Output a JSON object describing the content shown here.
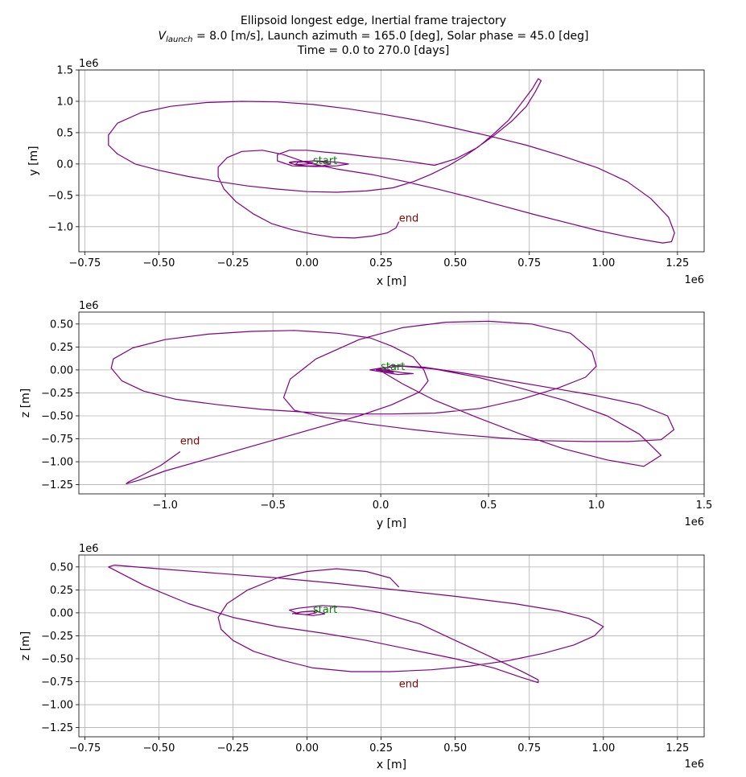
{
  "figure": {
    "title_line1": "Ellipsoid longest edge, Inertial frame trajectory",
    "title_line2_symbol": "V",
    "title_line2_subscript": "launch",
    "title_line2_rest": " = 8.0 [m/s], Launch azimuth = 165.0 [deg], Solar phase = 45.0 [deg]",
    "title_line3": "Time = 0.0 to 270.0 [days]"
  },
  "chart_data": [
    {
      "type": "line",
      "xlabel": "x [m]",
      "ylabel": "y [m]",
      "x_offset_label": "1e6",
      "y_offset_label": "1e6",
      "xlim": [
        -0.77,
        1.34
      ],
      "ylim": [
        -1.4,
        1.5
      ],
      "xticks": [
        -0.75,
        -0.5,
        -0.25,
        0.0,
        0.25,
        0.5,
        0.75,
        1.0,
        1.25
      ],
      "xtick_labels": [
        "−0.75",
        "−0.50",
        "−0.25",
        "0.00",
        "0.25",
        "0.50",
        "0.75",
        "1.00",
        "1.25"
      ],
      "yticks": [
        -1.0,
        -0.5,
        0.0,
        0.5,
        1.0,
        1.5
      ],
      "ytick_labels": [
        "−1.0",
        "−0.5",
        "0.0",
        "0.5",
        "1.0",
        "1.5"
      ],
      "grid": true,
      "line_color": "#800080",
      "annotations": [
        {
          "text": "start",
          "x": 0.02,
          "y": 0.0,
          "color": "#008000"
        },
        {
          "text": "end",
          "x": 0.31,
          "y": -0.92,
          "color": "#8b0000"
        }
      ],
      "series": [
        {
          "x": [
            -0.06,
            -0.04,
            -0.01,
            0.02,
            0.0,
            -0.04,
            -0.03,
            0.02,
            0.06,
            0.08,
            0.05,
            0.0,
            -0.04,
            -0.06,
            -0.03,
            0.03,
            0.1,
            0.14,
            0.1,
            0.03,
            -0.05,
            -0.1,
            -0.1,
            -0.06,
            0.0,
            0.06,
            0.13,
            0.2,
            0.28,
            0.36,
            0.43,
            0.5,
            0.57,
            0.63,
            0.69,
            0.74,
            0.77,
            0.79,
            0.78,
            0.76,
            0.72,
            0.68,
            0.63,
            0.58,
            0.53,
            0.48,
            0.42,
            0.36,
            0.29,
            0.2,
            0.1,
            -0.0,
            -0.1,
            -0.2,
            -0.3,
            -0.4,
            -0.5,
            -0.58,
            -0.64,
            -0.67,
            -0.67,
            -0.64,
            -0.56,
            -0.46,
            -0.34,
            -0.22,
            -0.1,
            0.02,
            0.14,
            0.26,
            0.38,
            0.5,
            0.62,
            0.74,
            0.86,
            0.98,
            1.08,
            1.16,
            1.22,
            1.24,
            1.23,
            1.2,
            1.15,
            1.08,
            0.98,
            0.88,
            0.77,
            0.66,
            0.55,
            0.44,
            0.33,
            0.22,
            0.1,
            0.0,
            -0.08,
            -0.15,
            -0.22,
            -0.27,
            -0.3,
            -0.3,
            -0.28,
            -0.24,
            -0.18,
            -0.12,
            -0.05,
            0.02,
            0.09,
            0.16,
            0.22,
            0.27,
            0.3,
            0.31
          ],
          "y": [
            0.03,
            0.04,
            0.04,
            0.02,
            0.0,
            -0.01,
            0.03,
            0.05,
            0.03,
            0.0,
            -0.03,
            -0.03,
            -0.01,
            0.02,
            0.04,
            0.05,
            0.03,
            0.0,
            -0.03,
            -0.04,
            -0.03,
            0.05,
            0.15,
            0.22,
            0.22,
            0.19,
            0.16,
            0.12,
            0.08,
            0.03,
            -0.02,
            0.08,
            0.25,
            0.45,
            0.68,
            0.92,
            1.15,
            1.33,
            1.36,
            1.2,
            0.95,
            0.7,
            0.48,
            0.28,
            0.12,
            -0.02,
            -0.16,
            -0.28,
            -0.38,
            -0.43,
            -0.45,
            -0.44,
            -0.4,
            -0.35,
            -0.28,
            -0.2,
            -0.1,
            0.0,
            0.16,
            0.3,
            0.46,
            0.65,
            0.82,
            0.92,
            0.98,
            1.0,
            0.99,
            0.95,
            0.88,
            0.79,
            0.69,
            0.57,
            0.44,
            0.3,
            0.13,
            -0.06,
            -0.28,
            -0.55,
            -0.85,
            -1.1,
            -1.24,
            -1.26,
            -1.22,
            -1.16,
            -1.06,
            -0.94,
            -0.81,
            -0.67,
            -0.53,
            -0.4,
            -0.28,
            -0.17,
            -0.08,
            0.02,
            0.15,
            0.22,
            0.2,
            0.1,
            -0.05,
            -0.2,
            -0.4,
            -0.6,
            -0.8,
            -0.95,
            -1.05,
            -1.12,
            -1.17,
            -1.18,
            -1.15,
            -1.1,
            -1.02,
            -0.92
          ]
        }
      ]
    },
    {
      "type": "line",
      "xlabel": "y [m]",
      "ylabel": "z [m]",
      "x_offset_label": "1e6",
      "y_offset_label": "1e6",
      "xlim": [
        -1.4,
        1.5
      ],
      "ylim": [
        -1.35,
        0.63
      ],
      "xticks": [
        -1.0,
        -0.5,
        0.0,
        0.5,
        1.0,
        1.5
      ],
      "xtick_labels": [
        "−1.0",
        "−0.5",
        "0.0",
        "0.5",
        "1.0",
        "1.5"
      ],
      "yticks": [
        -1.25,
        -1.0,
        -0.75,
        -0.5,
        -0.25,
        0.0,
        0.25,
        0.5
      ],
      "ytick_labels": [
        "−1.25",
        "−1.00",
        "−0.75",
        "−0.50",
        "−0.25",
        "0.00",
        "0.25",
        "0.50"
      ],
      "grid": true,
      "line_color": "#800080",
      "annotations": [
        {
          "text": "start",
          "x": 0.0,
          "y": 0.0,
          "color": "#008000"
        },
        {
          "text": "end",
          "x": -0.93,
          "y": -0.81,
          "color": "#8b0000"
        }
      ],
      "series": [
        {
          "x": [
            0.05,
            0.02,
            -0.01,
            0.02,
            0.06,
            0.03,
            -0.02,
            0.0,
            0.05,
            0.1,
            0.15,
            0.08,
            0.0,
            -0.05,
            0.0,
            0.1,
            0.25,
            0.45,
            0.65,
            0.85,
            1.05,
            1.2,
            1.3,
            1.22,
            1.05,
            0.85,
            0.65,
            0.45,
            0.25,
            0.1,
            0.0,
            0.05,
            0.2,
            0.4,
            0.6,
            0.8,
            1.0,
            1.2,
            1.33,
            1.36,
            1.3,
            1.15,
            0.95,
            0.75,
            0.55,
            0.35,
            0.15,
            -0.05,
            -0.25,
            -0.4,
            -0.45,
            -0.42,
            -0.3,
            -0.1,
            0.1,
            0.3,
            0.5,
            0.7,
            0.88,
            0.98,
            1.0,
            0.95,
            0.82,
            0.65,
            0.46,
            0.25,
            0.05,
            -0.15,
            -0.35,
            -0.55,
            -0.75,
            -0.95,
            -1.1,
            -1.2,
            -1.25,
            -1.24,
            -1.15,
            -1.0,
            -0.8,
            -0.6,
            -0.4,
            -0.2,
            -0.05,
            0.05,
            0.15,
            0.2,
            0.22,
            0.18,
            0.05,
            -0.1,
            -0.25,
            -0.4,
            -0.55,
            -0.7,
            -0.85,
            -1.0,
            -1.12,
            -1.18,
            -1.17,
            -1.1,
            -1.02,
            -0.93
          ],
          "y": [
            -0.02,
            -0.01,
            0.0,
            0.01,
            -0.03,
            -0.02,
            0.0,
            0.01,
            -0.01,
            -0.03,
            -0.04,
            -0.05,
            -0.02,
            0.0,
            0.02,
            0.04,
            0.01,
            -0.08,
            -0.2,
            -0.33,
            -0.5,
            -0.7,
            -0.93,
            -1.05,
            -0.98,
            -0.86,
            -0.7,
            -0.52,
            -0.33,
            -0.15,
            -0.01,
            0.05,
            0.03,
            -0.04,
            -0.12,
            -0.2,
            -0.28,
            -0.38,
            -0.5,
            -0.65,
            -0.76,
            -0.78,
            -0.78,
            -0.77,
            -0.74,
            -0.7,
            -0.65,
            -0.59,
            -0.52,
            -0.44,
            -0.3,
            -0.1,
            0.12,
            0.33,
            0.46,
            0.52,
            0.53,
            0.5,
            0.4,
            0.2,
            0.04,
            -0.08,
            -0.2,
            -0.32,
            -0.42,
            -0.47,
            -0.48,
            -0.48,
            -0.46,
            -0.43,
            -0.38,
            -0.32,
            -0.23,
            -0.12,
            0.02,
            0.12,
            0.24,
            0.33,
            0.39,
            0.42,
            0.43,
            0.4,
            0.35,
            0.26,
            0.14,
            0.0,
            -0.12,
            -0.24,
            -0.38,
            -0.5,
            -0.6,
            -0.7,
            -0.8,
            -0.9,
            -1.0,
            -1.1,
            -1.2,
            -1.24,
            -1.22,
            -1.14,
            -1.04,
            -0.89
          ]
        }
      ]
    },
    {
      "type": "line",
      "xlabel": "x [m]",
      "ylabel": "z [m]",
      "x_offset_label": "1e6",
      "y_offset_label": "1e6",
      "xlim": [
        -0.77,
        1.34
      ],
      "ylim": [
        -1.35,
        0.63
      ],
      "xticks": [
        -0.75,
        -0.5,
        -0.25,
        0.0,
        0.25,
        0.5,
        0.75,
        1.0,
        1.25
      ],
      "xtick_labels": [
        "−0.75",
        "−0.50",
        "−0.25",
        "0.00",
        "0.25",
        "0.50",
        "0.75",
        "1.00",
        "1.25"
      ],
      "yticks": [
        -1.25,
        -1.0,
        -0.75,
        -0.5,
        -0.25,
        0.0,
        0.25,
        0.5
      ],
      "ytick_labels": [
        "−1.25",
        "−1.00",
        "−0.75",
        "−0.50",
        "−0.25",
        "0.00",
        "0.25",
        "0.50"
      ],
      "grid": true,
      "line_color": "#800080",
      "annotations": [
        {
          "text": "start",
          "x": 0.02,
          "y": 0.0,
          "color": "#008000"
        },
        {
          "text": "end",
          "x": 0.31,
          "y": -0.81,
          "color": "#8b0000"
        }
      ],
      "series": [
        {
          "x": [
            -0.05,
            -0.02,
            0.02,
            0.03,
            0.0,
            -0.04,
            -0.02,
            0.03,
            0.06,
            0.02,
            -0.03,
            -0.06,
            -0.03,
            0.05,
            0.15,
            0.25,
            0.38,
            0.5,
            0.62,
            0.72,
            0.78,
            0.78,
            0.72,
            0.63,
            0.5,
            0.35,
            0.2,
            0.05,
            -0.1,
            -0.25,
            -0.4,
            -0.55,
            -0.67,
            -0.65,
            -0.5,
            -0.3,
            -0.1,
            0.1,
            0.3,
            0.5,
            0.7,
            0.85,
            0.95,
            1.0,
            0.97,
            0.9,
            0.8,
            0.68,
            0.55,
            0.42,
            0.28,
            0.15,
            0.02,
            -0.08,
            -0.18,
            -0.25,
            -0.29,
            -0.3,
            -0.27,
            -0.2,
            -0.1,
            0.0,
            0.1,
            0.2,
            0.28,
            0.31
          ],
          "y": [
            -0.01,
            0.01,
            0.02,
            0.0,
            -0.02,
            -0.01,
            0.01,
            0.02,
            -0.01,
            -0.03,
            -0.01,
            0.03,
            0.05,
            0.08,
            0.06,
            0.0,
            -0.12,
            -0.3,
            -0.48,
            -0.63,
            -0.73,
            -0.76,
            -0.7,
            -0.6,
            -0.5,
            -0.4,
            -0.3,
            -0.22,
            -0.15,
            -0.05,
            0.1,
            0.3,
            0.5,
            0.52,
            0.48,
            0.43,
            0.38,
            0.32,
            0.25,
            0.18,
            0.1,
            0.02,
            -0.06,
            -0.15,
            -0.25,
            -0.35,
            -0.44,
            -0.52,
            -0.58,
            -0.62,
            -0.64,
            -0.64,
            -0.6,
            -0.52,
            -0.42,
            -0.3,
            -0.18,
            -0.05,
            0.1,
            0.25,
            0.38,
            0.45,
            0.48,
            0.45,
            0.38,
            0.28
          ]
        }
      ]
    }
  ]
}
